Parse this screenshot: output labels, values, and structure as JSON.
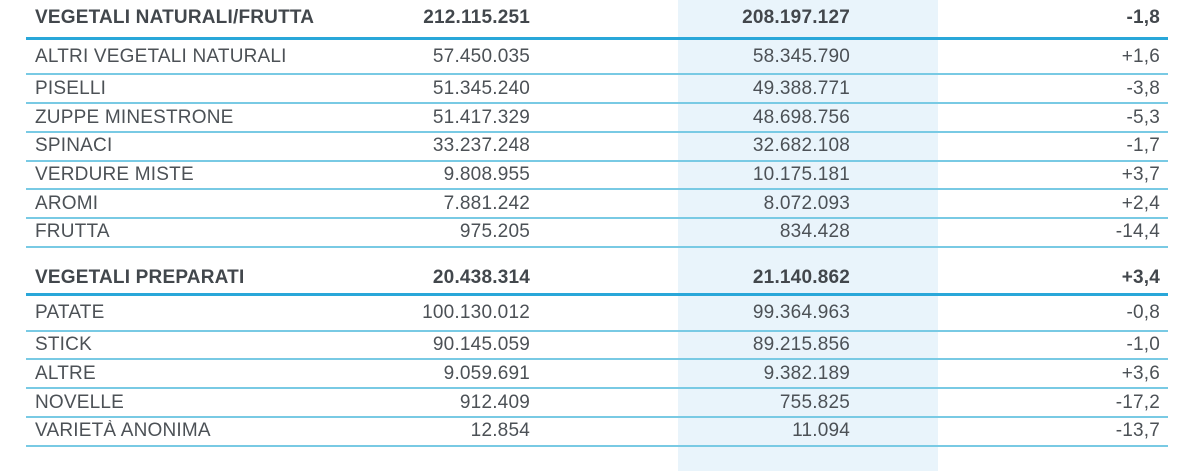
{
  "colors": {
    "highlight_band": "#e9f4fb",
    "header_rule": "#29a7d9",
    "row_rule": "#79cae4",
    "text": "#4c5156",
    "header_text": "#42474c"
  },
  "table": {
    "sections": [
      {
        "header": {
          "label": "VEGETALI NATURALI/FRUTTA",
          "value1": "212.115.251",
          "value2": "208.197.127",
          "change": "-1,8"
        },
        "rows": [
          {
            "label": "ALTRI VEGETALI NATURALI",
            "value1": "57.450.035",
            "value2": "58.345.790",
            "change": "+1,6"
          },
          {
            "label": "PISELLI",
            "value1": "51.345.240",
            "value2": "49.388.771",
            "change": "-3,8"
          },
          {
            "label": "ZUPPE MINESTRONE",
            "value1": "51.417.329",
            "value2": "48.698.756",
            "change": "-5,3"
          },
          {
            "label": "SPINACI",
            "value1": "33.237.248",
            "value2": "32.682.108",
            "change": "-1,7"
          },
          {
            "label": "VERDURE MISTE",
            "value1": "9.808.955",
            "value2": "10.175.181",
            "change": "+3,7"
          },
          {
            "label": "AROMI",
            "value1": "7.881.242",
            "value2": "8.072.093",
            "change": "+2,4"
          },
          {
            "label": "FRUTTA",
            "value1": "975.205",
            "value2": "834.428",
            "change": "-14,4"
          }
        ]
      },
      {
        "header": {
          "label": "VEGETALI PREPARATI",
          "value1": "20.438.314",
          "value2": "21.140.862",
          "change": "+3,4"
        },
        "rows": [
          {
            "label": "PATATE",
            "value1": "100.130.012",
            "value2": "99.364.963",
            "change": "-0,8"
          },
          {
            "label": "STICK",
            "value1": "90.145.059",
            "value2": "89.215.856",
            "change": "-1,0"
          },
          {
            "label": "ALTRE",
            "value1": "9.059.691",
            "value2": "9.382.189",
            "change": "+3,6"
          },
          {
            "label": "NOVELLE",
            "value1": "912.409",
            "value2": "755.825",
            "change": "-17,2"
          },
          {
            "label": "VARIETÀ ANONIMA",
            "value1": "12.854",
            "value2": "11.094",
            "change": "-13,7"
          }
        ]
      }
    ]
  }
}
